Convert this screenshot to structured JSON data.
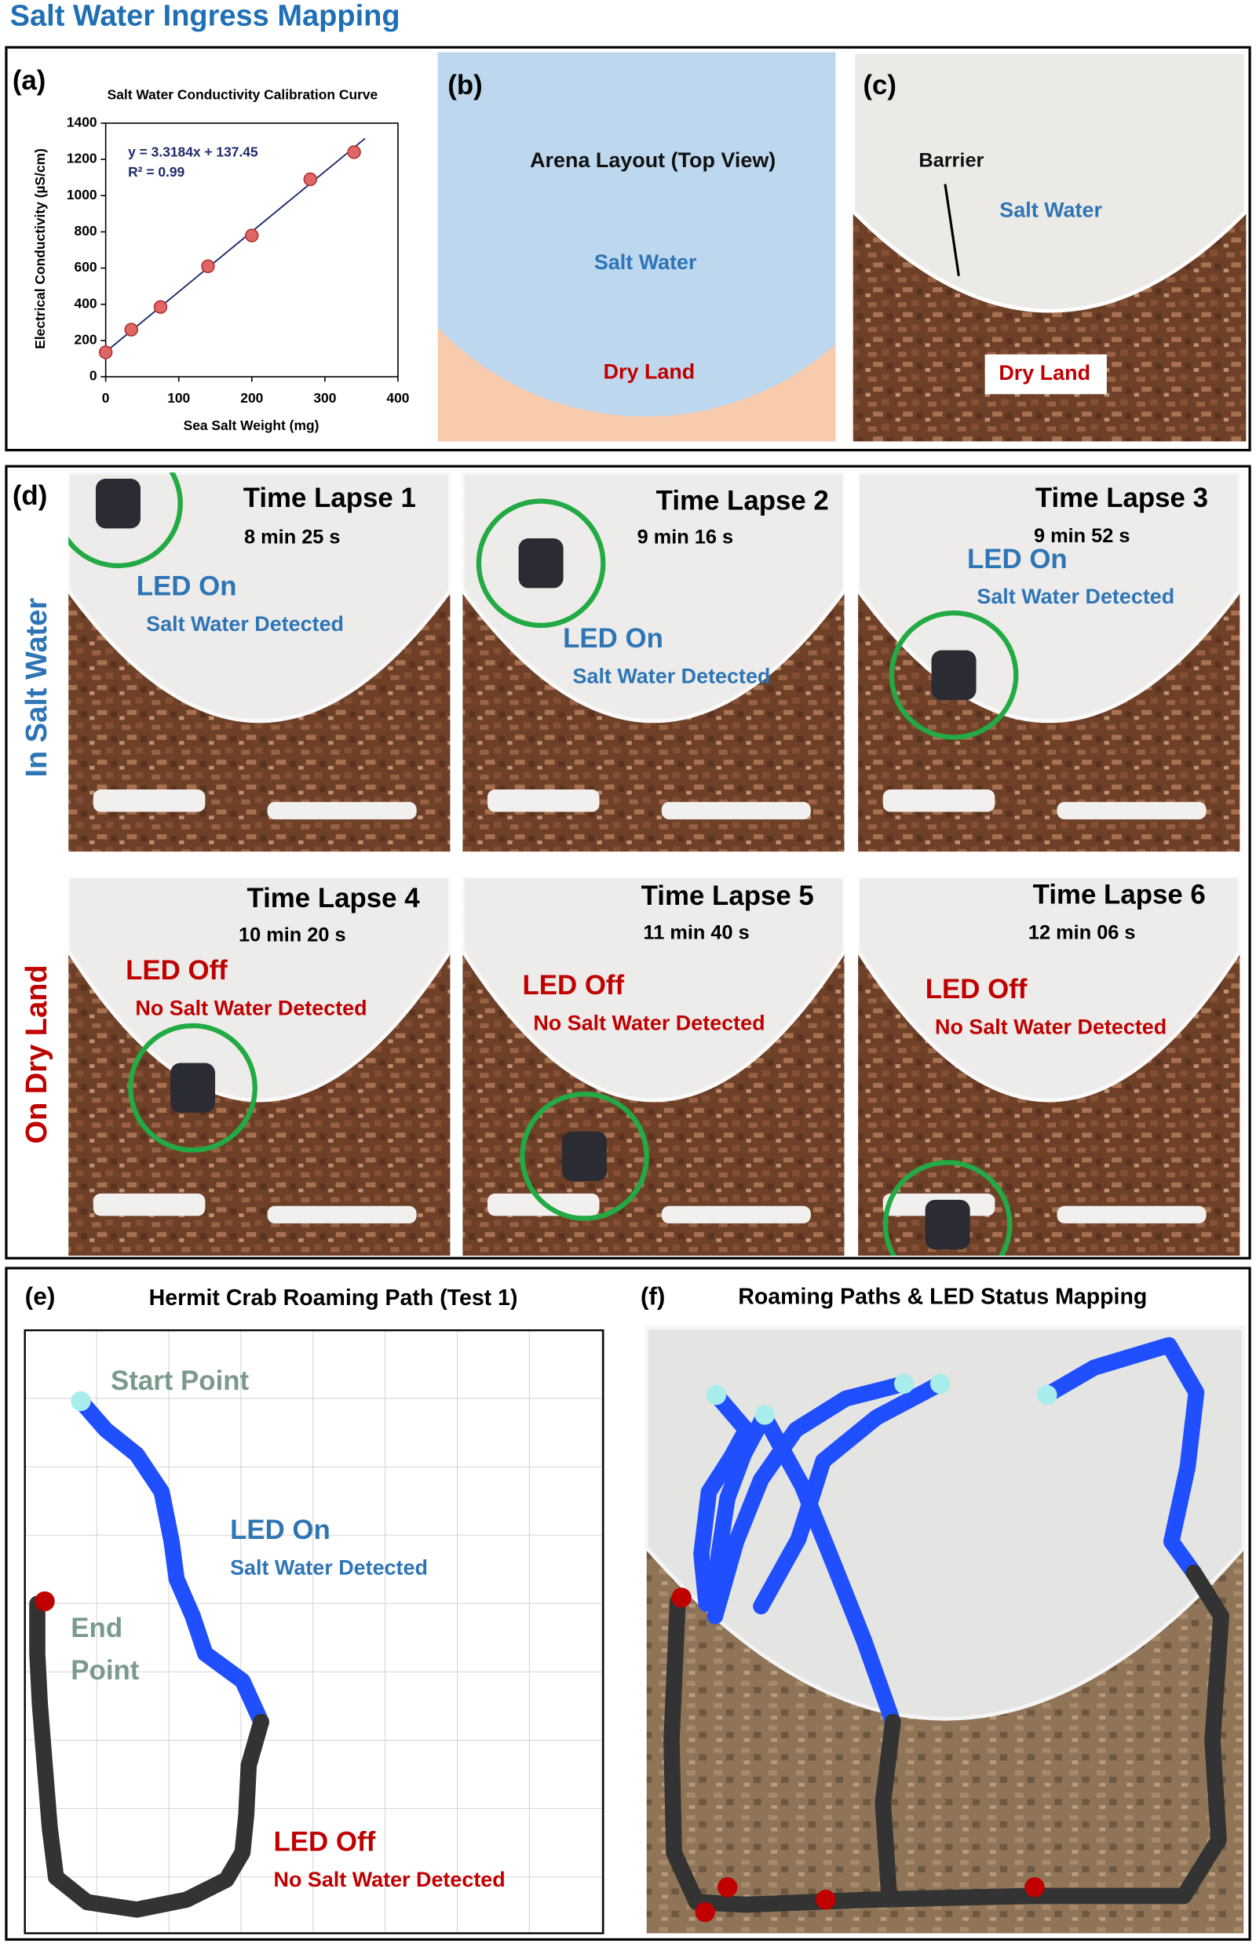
{
  "title": "Salt Water Ingress Mapping",
  "chart_data": {
    "type": "scatter",
    "label": "(a)",
    "title": "Salt Water Conductivity Calibration Curve",
    "x_label": "Sea Salt Weight (mg)",
    "y_label": "Electrical Conductivity (µS/cm)",
    "equation": "y = 3.3184x + 137.45",
    "r_squared": "R² = 0.99",
    "x": [
      0,
      35,
      75,
      140,
      200,
      280,
      340
    ],
    "values": [
      135,
      260,
      385,
      610,
      780,
      1090,
      1240
    ],
    "color": "#e06666",
    "fit": {
      "slope": 3.3184,
      "intercept": 137.45,
      "xlim": [
        0,
        355
      ]
    },
    "xlim": [
      0,
      400
    ],
    "ylim": [
      0,
      1400
    ],
    "xticks": [
      0,
      100,
      200,
      300,
      400
    ],
    "yticks": [
      0,
      200,
      400,
      600,
      800,
      1000,
      1200,
      1400
    ]
  },
  "layout": {
    "label": "(b)",
    "title": "Arena Layout (Top View)",
    "water": "Salt Water",
    "land": "Dry Land"
  },
  "photo": {
    "label": "(c)",
    "barrier": "Barrier",
    "water": "Salt Water",
    "land": "Dry Land"
  },
  "time_lapse": {
    "label": "(d)",
    "rows": [
      "In Salt Water",
      "On Dry Land"
    ],
    "frames": [
      {
        "title": "Time Lapse 1",
        "time": "8 min 25 s",
        "status": "LED On",
        "detail": "Salt Water Detected"
      },
      {
        "title": "Time Lapse 2",
        "time": "9 min 16 s",
        "status": "LED On",
        "detail": "Salt Water Detected"
      },
      {
        "title": "Time Lapse 3",
        "time": "9 min 52 s",
        "status": "LED On",
        "detail": "Salt Water Detected"
      },
      {
        "title": "Time Lapse 4",
        "time": "10 min 20 s",
        "status": "LED Off",
        "detail": "No Salt Water Detected"
      },
      {
        "title": "Time Lapse 5",
        "time": "11 min 40 s",
        "status": "LED Off",
        "detail": "No Salt Water Detected"
      },
      {
        "title": "Time Lapse 6",
        "time": "12 min 06 s",
        "status": "LED Off",
        "detail": "No Salt Water Detected"
      }
    ]
  },
  "path_test": {
    "label": "(e)",
    "title": "Hermit Crab Roaming Path (Test 1)",
    "start": "Start Point",
    "end": [
      "End",
      "Point"
    ],
    "on": "LED On",
    "on_detail": "Salt Water Detected",
    "off": "LED Off",
    "off_detail": "No Salt Water Detected"
  },
  "path_map": {
    "label": "(f)",
    "title": "Roaming Paths & LED Status Mapping"
  }
}
